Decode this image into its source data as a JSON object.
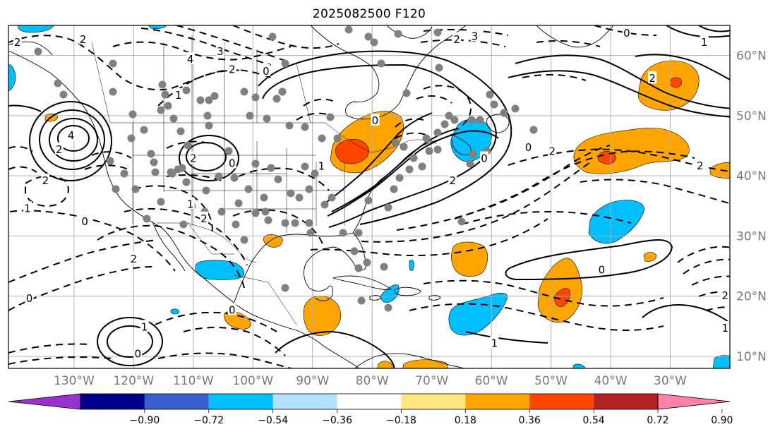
{
  "title": "2025082500 F120",
  "map": {
    "projection": "equirectangular",
    "lon_range": [
      -141,
      -20
    ],
    "lat_range": [
      8,
      65
    ],
    "gridlines": true,
    "longitude_labels": [
      {
        "lon": -130,
        "text": "130°W"
      },
      {
        "lon": -120,
        "text": "120°W"
      },
      {
        "lon": -110,
        "text": "110°W"
      },
      {
        "lon": -100,
        "text": "100°W"
      },
      {
        "lon": -90,
        "text": "90°W"
      },
      {
        "lon": -80,
        "text": "80°W"
      },
      {
        "lon": -70,
        "text": "70°W"
      },
      {
        "lon": -60,
        "text": "60°W"
      },
      {
        "lon": -50,
        "text": "50°W"
      },
      {
        "lon": -40,
        "text": "40°W"
      },
      {
        "lon": -30,
        "text": "30°W"
      }
    ],
    "latitude_labels": [
      {
        "lat": 60,
        "text": "60°N"
      },
      {
        "lat": 50,
        "text": "50°N"
      },
      {
        "lat": 40,
        "text": "40°N"
      },
      {
        "lat": 30,
        "text": "30°N"
      },
      {
        "lat": 20,
        "text": "20°N"
      },
      {
        "lat": 10,
        "text": "10°N"
      }
    ]
  },
  "colorbar": {
    "colors": [
      "#9932cc",
      "#00008b",
      "#3a5fcd",
      "#00bfff",
      "#b2e2ff",
      "#ffffff",
      "#ffe680",
      "#ffa500",
      "#ff4500",
      "#b22222",
      "#ff82ab"
    ],
    "levels": [
      "−0.90",
      "−0.72",
      "−0.54",
      "−0.36",
      "−0.18",
      "0.18",
      "0.36",
      "0.54",
      "0.72",
      "0.90"
    ],
    "extend": "both"
  },
  "contour_labels": [
    {
      "text": "2",
      "lon": -139.5,
      "lat": 62.3
    },
    {
      "text": "2",
      "lon": -128.5,
      "lat": 62.8
    },
    {
      "text": "4",
      "lon": -110.5,
      "lat": 59.5
    },
    {
      "text": "3",
      "lon": -105.5,
      "lat": 60.8
    },
    {
      "text": "2",
      "lon": -103.5,
      "lat": 57.8
    },
    {
      "text": "0",
      "lon": -97.8,
      "lat": 57.5
    },
    {
      "text": "1",
      "lon": -112.5,
      "lat": 53.5
    },
    {
      "text": "0",
      "lon": -79.5,
      "lat": 49.3
    },
    {
      "text": "2",
      "lon": -65.8,
      "lat": 62.8
    },
    {
      "text": "3",
      "lon": -62.8,
      "lat": 63.3
    },
    {
      "text": "0",
      "lon": -37.3,
      "lat": 63.8
    },
    {
      "text": "1",
      "lon": -24.3,
      "lat": 62.3
    },
    {
      "text": "2",
      "lon": -33,
      "lat": 56.3
    },
    {
      "text": "4",
      "lon": -130.5,
      "lat": 46.8
    },
    {
      "text": "2",
      "lon": -132.5,
      "lat": 44.5
    },
    {
      "text": "2",
      "lon": -110,
      "lat": 43
    },
    {
      "text": "0",
      "lon": -103.5,
      "lat": 42.2
    },
    {
      "text": "1",
      "lon": -88.5,
      "lat": 41.7
    },
    {
      "text": "0",
      "lon": -61.2,
      "lat": 43
    },
    {
      "text": "2",
      "lon": -66.5,
      "lat": 39.3
    },
    {
      "text": "0",
      "lon": -53.8,
      "lat": 44.8
    },
    {
      "text": "2",
      "lon": -49.8,
      "lat": 44.2
    },
    {
      "text": "2",
      "lon": -25,
      "lat": 41.8
    },
    {
      "text": "1",
      "lon": -137.8,
      "lat": 34.7
    },
    {
      "text": "0",
      "lon": -128.2,
      "lat": 32.5
    },
    {
      "text": "2",
      "lon": -134.8,
      "lat": 39.3
    },
    {
      "text": "1",
      "lon": -110.5,
      "lat": 35.4
    },
    {
      "text": "2",
      "lon": -108.2,
      "lat": 33
    },
    {
      "text": "2",
      "lon": -120,
      "lat": 26.3
    },
    {
      "text": "0",
      "lon": -137.5,
      "lat": 19.7
    },
    {
      "text": "0",
      "lon": -103.5,
      "lat": 17.8
    },
    {
      "text": "1",
      "lon": -118.2,
      "lat": 15
    },
    {
      "text": "0",
      "lon": -119.3,
      "lat": 10.5
    },
    {
      "text": "1",
      "lon": -59.5,
      "lat": 12.3
    },
    {
      "text": "0",
      "lon": -41.5,
      "lat": 24.5
    },
    {
      "text": "2",
      "lon": -20.8,
      "lat": 20.2
    },
    {
      "text": "1",
      "lon": -20.8,
      "lat": 14.8
    }
  ]
}
